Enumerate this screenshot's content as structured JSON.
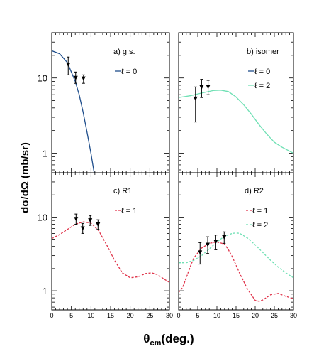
{
  "figure": {
    "ylabel": "dσ/dΩ (mb/sr)",
    "xlabel_main": "θ",
    "xlabel_sub": "cm",
    "xlabel_tail": "(deg.)"
  },
  "chart_data": [
    {
      "type": "line",
      "panel_label": "a) g.s.",
      "xlim": [
        0,
        30
      ],
      "ylim": [
        0.55,
        40
      ],
      "yscale": "log",
      "yticks": [
        1,
        10
      ],
      "xticks": [
        0,
        5,
        10,
        15,
        20,
        25,
        30
      ],
      "legend": [
        {
          "label": "ℓ = 0",
          "color": "#1f4e8c",
          "dash": "solid"
        }
      ],
      "series": [
        {
          "legend_index": 0,
          "color": "#1f4e8c",
          "dash": "solid",
          "x": [
            0,
            2,
            4,
            6,
            7,
            8,
            9,
            10,
            10.8
          ],
          "y": [
            23,
            21,
            16,
            9,
            6,
            3.5,
            1.9,
            1.0,
            0.55
          ]
        }
      ],
      "points": [
        {
          "x": 4.2,
          "y": 15,
          "ylo": 11,
          "yhi": 19
        },
        {
          "x": 6.1,
          "y": 10,
          "ylo": 8.5,
          "yhi": 12
        },
        {
          "x": 8.1,
          "y": 9.8,
          "ylo": 8.5,
          "yhi": 11
        }
      ]
    },
    {
      "type": "line",
      "panel_label": "b) isomer",
      "xlim": [
        0,
        30
      ],
      "ylim": [
        0.55,
        40
      ],
      "yscale": "log",
      "yticks": [
        1,
        10
      ],
      "xticks": [
        0,
        5,
        10,
        15,
        20,
        25,
        30
      ],
      "legend": [
        {
          "label": "ℓ = 0",
          "color": "#1f4e8c",
          "dash": "solid"
        },
        {
          "label": "ℓ = 2",
          "color": "#6fe0b4",
          "dash": "solid"
        }
      ],
      "series": [
        {
          "legend_index": 1,
          "color": "#6fe0b4",
          "dash": "solid",
          "x": [
            0,
            3,
            6,
            9,
            11,
            13,
            15,
            17,
            19,
            21,
            23,
            25,
            27,
            30
          ],
          "y": [
            5.5,
            5.8,
            6.3,
            6.8,
            6.9,
            6.6,
            5.6,
            4.4,
            3.3,
            2.4,
            1.8,
            1.4,
            1.2,
            1.0
          ]
        }
      ],
      "points": [
        {
          "x": 4.4,
          "y": 5.3,
          "ylo": 2.6,
          "yhi": 7.6
        },
        {
          "x": 6.0,
          "y": 7.5,
          "ylo": 5.5,
          "yhi": 9.6
        },
        {
          "x": 7.7,
          "y": 7.6,
          "ylo": 6.0,
          "yhi": 9.3
        }
      ]
    },
    {
      "type": "line",
      "panel_label": "c) R1",
      "xlim": [
        0,
        30
      ],
      "ylim": [
        0.55,
        40
      ],
      "yscale": "log",
      "yticks": [
        1,
        10
      ],
      "xticks": [
        0,
        5,
        10,
        15,
        20,
        25,
        30
      ],
      "legend": [
        {
          "label": "ℓ = 1",
          "color": "#e0334a",
          "dash": "dashed"
        }
      ],
      "series": [
        {
          "legend_index": 0,
          "color": "#e0334a",
          "dash": "dashed",
          "x": [
            0,
            2,
            4,
            6,
            8,
            10,
            12,
            14,
            16,
            18,
            20,
            22,
            24,
            25.5,
            27,
            29,
            30
          ],
          "y": [
            5.1,
            5.8,
            6.8,
            8.0,
            8.6,
            8.3,
            6.5,
            4.2,
            2.6,
            1.75,
            1.5,
            1.55,
            1.72,
            1.75,
            1.65,
            1.4,
            1.3
          ]
        }
      ],
      "points": [
        {
          "x": 6.2,
          "y": 9.4,
          "ylo": 8.0,
          "yhi": 11.0
        },
        {
          "x": 7.9,
          "y": 7.0,
          "ylo": 6.0,
          "yhi": 8.2
        },
        {
          "x": 9.8,
          "y": 9.0,
          "ylo": 7.7,
          "yhi": 10.5
        },
        {
          "x": 11.8,
          "y": 7.9,
          "ylo": 6.8,
          "yhi": 9.2
        }
      ]
    },
    {
      "type": "line",
      "panel_label": "d) R2",
      "xlim": [
        0,
        30
      ],
      "ylim": [
        0.55,
        40
      ],
      "yscale": "log",
      "yticks": [
        1,
        10
      ],
      "xticks": [
        0,
        5,
        10,
        15,
        20,
        25,
        30
      ],
      "legend": [
        {
          "label": "ℓ = 1",
          "color": "#e0334a",
          "dash": "dashed"
        },
        {
          "label": "ℓ = 2",
          "color": "#6fe0b4",
          "dash": "dashed"
        }
      ],
      "series": [
        {
          "legend_index": 0,
          "color": "#e0334a",
          "dash": "dashed",
          "x": [
            0,
            1,
            2,
            3,
            4,
            6,
            8,
            10,
            12,
            13,
            14,
            16,
            18,
            20,
            21,
            22,
            24,
            26,
            28,
            30
          ],
          "y": [
            0.95,
            1.1,
            1.5,
            2.1,
            2.8,
            3.8,
            4.4,
            4.6,
            4.3,
            3.6,
            2.9,
            1.7,
            1.05,
            0.74,
            0.72,
            0.75,
            0.88,
            0.92,
            0.84,
            0.78
          ]
        },
        {
          "legend_index": 1,
          "color": "#6fe0b4",
          "dash": "dashed",
          "x": [
            0,
            2,
            4,
            6,
            8,
            10,
            12,
            14,
            15,
            16,
            18,
            20,
            22,
            24,
            26,
            28,
            30
          ],
          "y": [
            2.4,
            2.4,
            2.6,
            3.0,
            3.7,
            4.6,
            5.5,
            6.0,
            6.1,
            6.0,
            5.2,
            4.2,
            3.3,
            2.6,
            2.1,
            1.75,
            1.5
          ]
        }
      ],
      "points": [
        {
          "x": 5.6,
          "y": 3.3,
          "ylo": 2.3,
          "yhi": 4.5
        },
        {
          "x": 7.6,
          "y": 4.2,
          "ylo": 3.2,
          "yhi": 5.4
        },
        {
          "x": 9.7,
          "y": 4.6,
          "ylo": 3.6,
          "yhi": 5.7
        },
        {
          "x": 11.9,
          "y": 5.3,
          "ylo": 4.4,
          "yhi": 6.3
        }
      ]
    }
  ]
}
